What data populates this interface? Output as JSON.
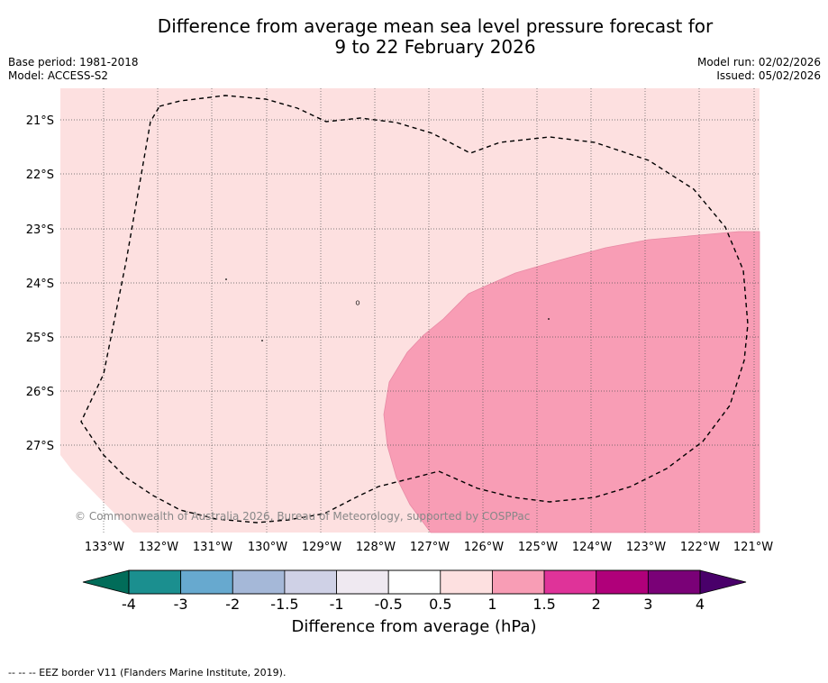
{
  "title_line1": "Difference from average mean sea level pressure forecast for",
  "title_line2": "9 to 22 February 2026",
  "base_period": "Base period: 1981-2018",
  "model": "Model: ACCESS-S2",
  "model_run": "Model run: 02/02/2026",
  "issued": "Issued: 05/02/2026",
  "copyright": "© Commonwealth of Australia 2026, Bureau of Meteorology, supported by COSPPac",
  "lat_labels": [
    "21°S",
    "22°S",
    "23°S",
    "24°S",
    "25°S",
    "26°S",
    "27°S"
  ],
  "lon_labels": [
    "133°W",
    "132°W",
    "131°W",
    "130°W",
    "129°W",
    "128°W",
    "127°W",
    "126°W",
    "125°W",
    "124°W",
    "123°W",
    "122°W",
    "121°W"
  ],
  "colorbar": {
    "label": "Difference from average (hPa)",
    "ticks": [
      "-4",
      "-3",
      "-2",
      "-1.5",
      "-1",
      "-0.5",
      "0.5",
      "1",
      "1.5",
      "2",
      "3",
      "4"
    ],
    "colors": [
      "#1b8f8f",
      "#67a9cf",
      "#a5b8d8",
      "#cfd1e6",
      "#efe9f1",
      "#ffffff",
      "#fde0e0",
      "#f89db5",
      "#df3399",
      "#b0007a",
      "#7a0177"
    ],
    "under_color": "#016c59",
    "over_color": "#49006a"
  },
  "map_colors": {
    "light_pink": "#fde0e0",
    "mid_pink": "#f89db5"
  },
  "footer": "--  --  -- EEZ border V11 (Flanders Marine Institute, 2019)."
}
